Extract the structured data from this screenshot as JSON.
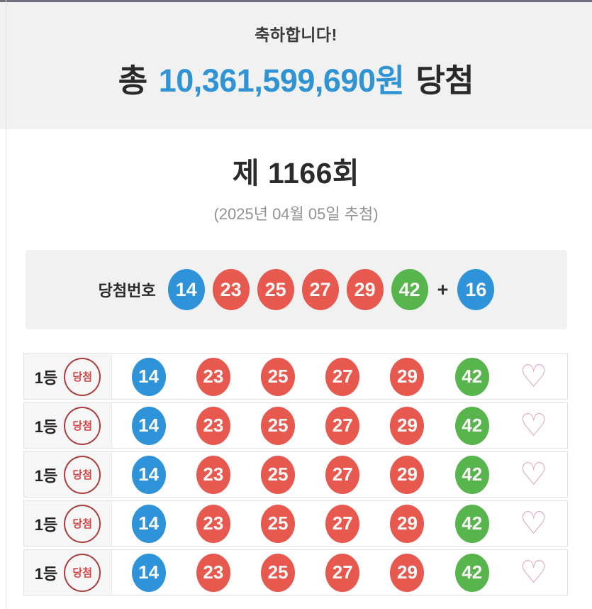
{
  "page": {
    "congrats": "축하합니다!",
    "total_prefix": "총",
    "total_amount": "10,361,599,690원",
    "total_suffix": "당첨",
    "round_title": "제 1166회",
    "draw_date": "(2025년 04월 05일 추첨)"
  },
  "winning_panel": {
    "label": "당첨번호",
    "plus": "+",
    "numbers": [
      {
        "value": "14",
        "color": "blue"
      },
      {
        "value": "23",
        "color": "red"
      },
      {
        "value": "25",
        "color": "red"
      },
      {
        "value": "27",
        "color": "red"
      },
      {
        "value": "29",
        "color": "red"
      },
      {
        "value": "42",
        "color": "green"
      }
    ],
    "bonus": {
      "value": "16",
      "color": "blue"
    }
  },
  "results": {
    "rows": [
      {
        "rank": "1등",
        "badge": "당첨",
        "numbers": [
          {
            "value": "14",
            "color": "blue"
          },
          {
            "value": "23",
            "color": "red"
          },
          {
            "value": "25",
            "color": "red"
          },
          {
            "value": "27",
            "color": "red"
          },
          {
            "value": "29",
            "color": "red"
          },
          {
            "value": "42",
            "color": "green"
          }
        ]
      },
      {
        "rank": "1등",
        "badge": "당첨",
        "numbers": [
          {
            "value": "14",
            "color": "blue"
          },
          {
            "value": "23",
            "color": "red"
          },
          {
            "value": "25",
            "color": "red"
          },
          {
            "value": "27",
            "color": "red"
          },
          {
            "value": "29",
            "color": "red"
          },
          {
            "value": "42",
            "color": "green"
          }
        ]
      },
      {
        "rank": "1등",
        "badge": "당첨",
        "numbers": [
          {
            "value": "14",
            "color": "blue"
          },
          {
            "value": "23",
            "color": "red"
          },
          {
            "value": "25",
            "color": "red"
          },
          {
            "value": "27",
            "color": "red"
          },
          {
            "value": "29",
            "color": "red"
          },
          {
            "value": "42",
            "color": "green"
          }
        ]
      },
      {
        "rank": "1등",
        "badge": "당첨",
        "numbers": [
          {
            "value": "14",
            "color": "blue"
          },
          {
            "value": "23",
            "color": "red"
          },
          {
            "value": "25",
            "color": "red"
          },
          {
            "value": "27",
            "color": "red"
          },
          {
            "value": "29",
            "color": "red"
          },
          {
            "value": "42",
            "color": "green"
          }
        ]
      },
      {
        "rank": "1등",
        "badge": "당첨",
        "numbers": [
          {
            "value": "14",
            "color": "blue"
          },
          {
            "value": "23",
            "color": "red"
          },
          {
            "value": "25",
            "color": "red"
          },
          {
            "value": "27",
            "color": "red"
          },
          {
            "value": "29",
            "color": "red"
          },
          {
            "value": "42",
            "color": "green"
          }
        ]
      }
    ]
  },
  "icons": {
    "heart": "♡"
  },
  "colors": {
    "top_bar": "#716d7d",
    "header_bg": "#f1f1f2",
    "panel_bg": "#f1f1f2",
    "amount_blue": "#3094d4",
    "ball_blue": "#2e93d8",
    "ball_red": "#e7594e",
    "ball_green": "#58b54d",
    "stamp_border": "#a83f3f",
    "stamp_text": "#d94848",
    "heart_pink": "#dfa6c3"
  }
}
